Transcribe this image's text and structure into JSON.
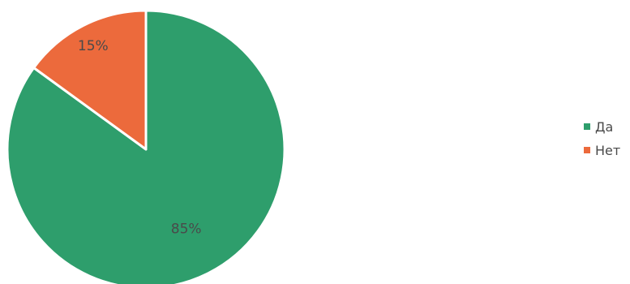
{
  "chart_data": {
    "type": "pie",
    "title": "",
    "categories": [
      "Да",
      "Нет"
    ],
    "values": [
      85,
      15
    ],
    "labels": [
      "85%",
      "15%"
    ],
    "colors": [
      "#2e9e6c",
      "#ec6a3c"
    ],
    "legend": {
      "position": "right",
      "items": [
        {
          "label": "Да",
          "color": "#2e9e6c"
        },
        {
          "label": "Нет",
          "color": "#ec6a3c"
        }
      ]
    }
  }
}
